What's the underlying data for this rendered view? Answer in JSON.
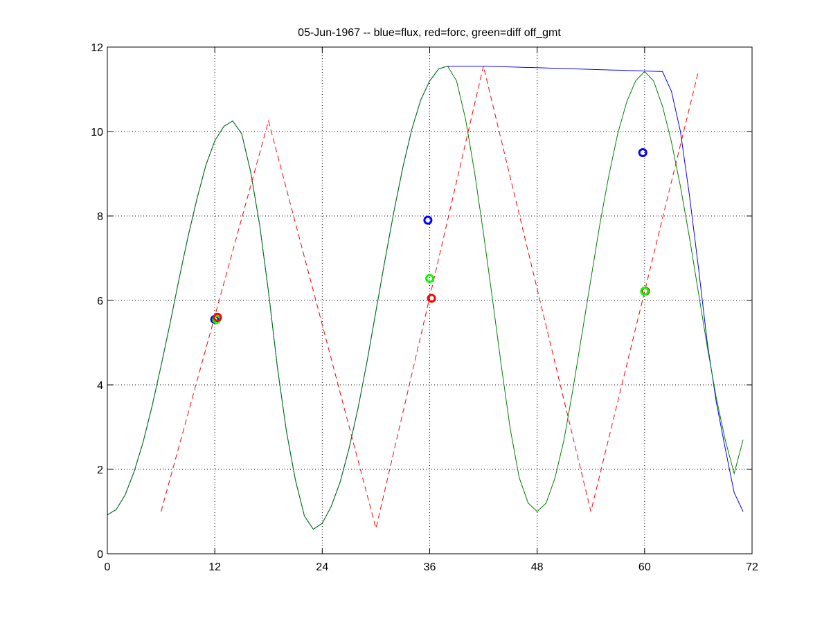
{
  "chart_data": {
    "type": "line",
    "title": "05-Jun-1967 -- blue=flux, red=forc, green=diff off_gmt",
    "xlabel": "",
    "ylabel": "",
    "xlim": [
      0,
      72
    ],
    "ylim": [
      0,
      12
    ],
    "xticks": [
      0,
      12,
      24,
      36,
      48,
      60,
      72
    ],
    "yticks": [
      0,
      2,
      4,
      6,
      8,
      10,
      12
    ],
    "grid": true,
    "legend": "none",
    "series": [
      {
        "color": "#0000ff",
        "style": "solid",
        "x": [
          0,
          1,
          2,
          3,
          4,
          5,
          6,
          7,
          8,
          9,
          10,
          11,
          12,
          13,
          14,
          15,
          16,
          17,
          18,
          19,
          20,
          21,
          22,
          23,
          24,
          25,
          26,
          27,
          28,
          29,
          30,
          31,
          32,
          33,
          34,
          35,
          36,
          37,
          38,
          39,
          40,
          41,
          42,
          62,
          63,
          64,
          65,
          66,
          67,
          68,
          69,
          70,
          71
        ],
        "y": [
          0.92,
          1.05,
          1.4,
          1.95,
          2.65,
          3.5,
          4.45,
          5.45,
          6.5,
          7.5,
          8.4,
          9.2,
          9.78,
          10.12,
          10.25,
          9.95,
          9.05,
          7.8,
          6.2,
          4.4,
          2.9,
          1.75,
          0.9,
          0.58,
          0.72,
          1.12,
          1.7,
          2.5,
          3.45,
          4.55,
          5.75,
          6.95,
          8.1,
          9.15,
          10.05,
          10.75,
          11.2,
          11.48,
          11.55,
          11.55,
          11.55,
          11.55,
          11.55,
          11.42,
          10.95,
          10.0,
          8.5,
          6.8,
          5.0,
          3.6,
          2.5,
          1.45,
          1.0
        ]
      },
      {
        "color": "#008000",
        "style": "solid",
        "x": [
          0,
          1,
          2,
          3,
          4,
          5,
          6,
          7,
          8,
          9,
          10,
          11,
          12,
          13,
          14,
          15,
          16,
          17,
          18,
          19,
          20,
          21,
          22,
          23,
          24,
          25,
          26,
          27,
          28,
          29,
          30,
          31,
          32,
          33,
          34,
          35,
          36,
          37,
          38,
          39,
          40,
          41,
          42,
          43,
          44,
          45,
          46,
          47,
          48,
          49,
          50,
          51,
          52,
          53,
          54,
          55,
          56,
          57,
          58,
          59,
          60,
          61,
          62,
          63,
          64,
          65,
          66,
          67,
          68,
          69,
          70,
          71
        ],
        "y": [
          0.92,
          1.05,
          1.4,
          1.95,
          2.65,
          3.5,
          4.45,
          5.45,
          6.5,
          7.5,
          8.4,
          9.2,
          9.78,
          10.12,
          10.25,
          9.95,
          9.05,
          7.8,
          6.2,
          4.4,
          2.9,
          1.75,
          0.9,
          0.58,
          0.72,
          1.12,
          1.7,
          2.5,
          3.45,
          4.55,
          5.75,
          6.95,
          8.1,
          9.15,
          10.05,
          10.75,
          11.2,
          11.48,
          11.55,
          11.2,
          10.3,
          9.05,
          7.6,
          6.05,
          4.45,
          2.95,
          1.8,
          1.2,
          1.0,
          1.2,
          1.8,
          2.7,
          3.9,
          5.2,
          6.5,
          7.8,
          8.95,
          9.95,
          10.7,
          11.2,
          11.42,
          11.2,
          10.6,
          9.75,
          8.7,
          7.5,
          6.2,
          4.9,
          3.7,
          2.7,
          1.9,
          2.7
        ]
      },
      {
        "color": "#ff0000",
        "style": "dashed",
        "x": [
          6,
          18,
          30,
          42,
          54,
          66
        ],
        "y": [
          1.0,
          10.25,
          0.6,
          11.55,
          1.0,
          11.42
        ]
      }
    ],
    "markers": [
      {
        "color": "#0000ff",
        "x": 12.0,
        "y": 5.55
      },
      {
        "color": "#00ff00",
        "x": 12.2,
        "y": 5.55
      },
      {
        "color": "#ff0000",
        "x": 12.3,
        "y": 5.6
      },
      {
        "color": "#0000ff",
        "x": 35.8,
        "y": 7.9
      },
      {
        "color": "#00ff00",
        "x": 36.0,
        "y": 6.52
      },
      {
        "color": "#ff0000",
        "x": 36.2,
        "y": 6.05
      },
      {
        "color": "#0000ff",
        "x": 59.8,
        "y": 9.5
      },
      {
        "color": "#ff0000",
        "x": 60.1,
        "y": 6.22
      },
      {
        "color": "#00ff00",
        "x": 60.0,
        "y": 6.22
      }
    ]
  }
}
